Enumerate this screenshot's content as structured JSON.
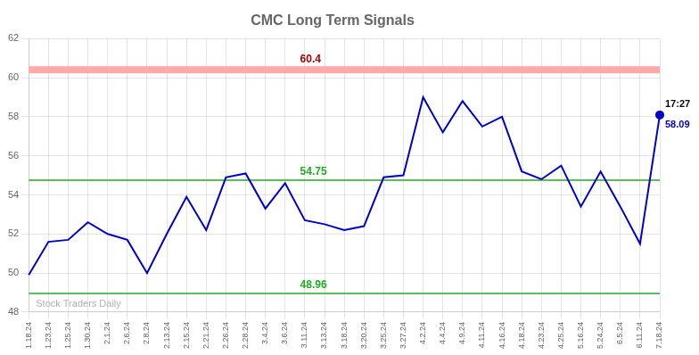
{
  "chart_data": {
    "type": "line",
    "title": "CMC Long Term Signals",
    "categories": [
      "1.18.24",
      "1.23.24",
      "1.25.24",
      "1.30.24",
      "2.1.24",
      "2.6.24",
      "2.8.24",
      "2.13.24",
      "2.15.24",
      "2.21.24",
      "2.26.24",
      "2.28.24",
      "3.4.24",
      "3.6.24",
      "3.11.24",
      "3.13.24",
      "3.18.24",
      "3.20.24",
      "3.25.24",
      "3.27.24",
      "4.2.24",
      "4.4.24",
      "4.9.24",
      "4.11.24",
      "4.16.24",
      "4.18.24",
      "4.23.24",
      "4.25.24",
      "5.16.24",
      "5.24.24",
      "6.5.24",
      "6.11.24",
      "7.18.24"
    ],
    "values": [
      49.9,
      51.6,
      51.7,
      52.6,
      52.0,
      51.7,
      50.0,
      52.0,
      53.9,
      52.2,
      54.9,
      55.1,
      53.3,
      54.6,
      52.7,
      52.5,
      52.2,
      52.4,
      54.9,
      55.0,
      59.0,
      57.2,
      58.8,
      57.5,
      58.0,
      55.2,
      54.8,
      55.5,
      53.4,
      55.2,
      53.4,
      51.5,
      58.09
    ],
    "color": "#0000cc",
    "ylim": [
      48,
      62
    ],
    "yticks": [
      48,
      50,
      52,
      54,
      56,
      58,
      60,
      62
    ],
    "grid": true,
    "reference_lines": [
      {
        "value": 60.4,
        "label": "60.4",
        "color": "#ffaaaa",
        "label_color": "#aa0000",
        "line_style": "thick"
      },
      {
        "value": 54.75,
        "label": "54.75",
        "color": "#22aa22",
        "label_color": "#22aa22",
        "line_style": "solid"
      },
      {
        "value": 48.96,
        "label": "48.96",
        "color": "#22aa22",
        "label_color": "#22aa22",
        "line_style": "solid"
      }
    ],
    "annotations": [
      {
        "text": "17:27",
        "category": "7.18.24",
        "value": 58.09,
        "color": "#000000",
        "position": "above"
      },
      {
        "text": "58.09",
        "category": "7.18.24",
        "value": 58.09,
        "color": "#0000cc",
        "position": "below"
      }
    ],
    "watermark": {
      "text": "Stock Traders Daily",
      "color": "#b0b0b0"
    }
  }
}
